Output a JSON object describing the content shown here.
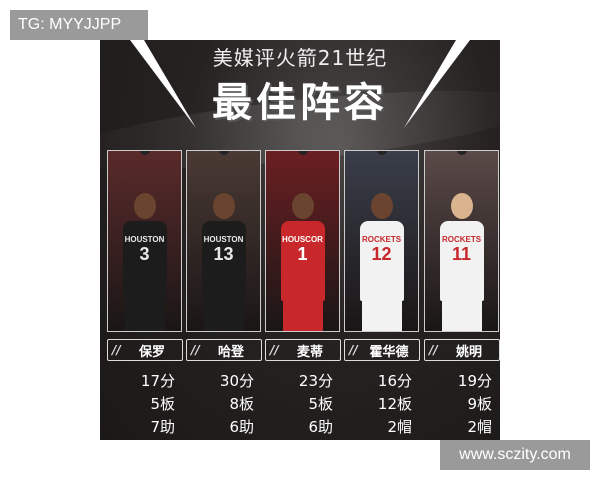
{
  "watermark_left": "TG: MYYJJPP",
  "watermark_right": "www.sczity.com",
  "poster": {
    "subtitle": "美媒评火箭21世纪",
    "title": "最佳阵容",
    "players": [
      {
        "name": "保罗",
        "points": "17分",
        "stat2": "5板",
        "stat3": "7助",
        "jersey_team": "HOUSTON",
        "jersey_number": "3",
        "jersey_color": "#1c1c1c"
      },
      {
        "name": "哈登",
        "points": "30分",
        "stat2": "8板",
        "stat3": "6助",
        "jersey_team": "HOUSTON",
        "jersey_number": "13",
        "jersey_color": "#1c1c1c"
      },
      {
        "name": "麦蒂",
        "points": "23分",
        "stat2": "5板",
        "stat3": "6助",
        "jersey_team": "HOUSCOR",
        "jersey_number": "1",
        "jersey_color": "#c8282c"
      },
      {
        "name": "霍华德",
        "points": "16分",
        "stat2": "12板",
        "stat3": "2帽",
        "jersey_team": "ROCKETS",
        "jersey_number": "12",
        "jersey_color": "#f2f2f2"
      },
      {
        "name": "姚明",
        "points": "19分",
        "stat2": "9板",
        "stat3": "2帽",
        "jersey_team": "ROCKETS",
        "jersey_number": "11",
        "jersey_color": "#f2f2f2"
      }
    ]
  }
}
